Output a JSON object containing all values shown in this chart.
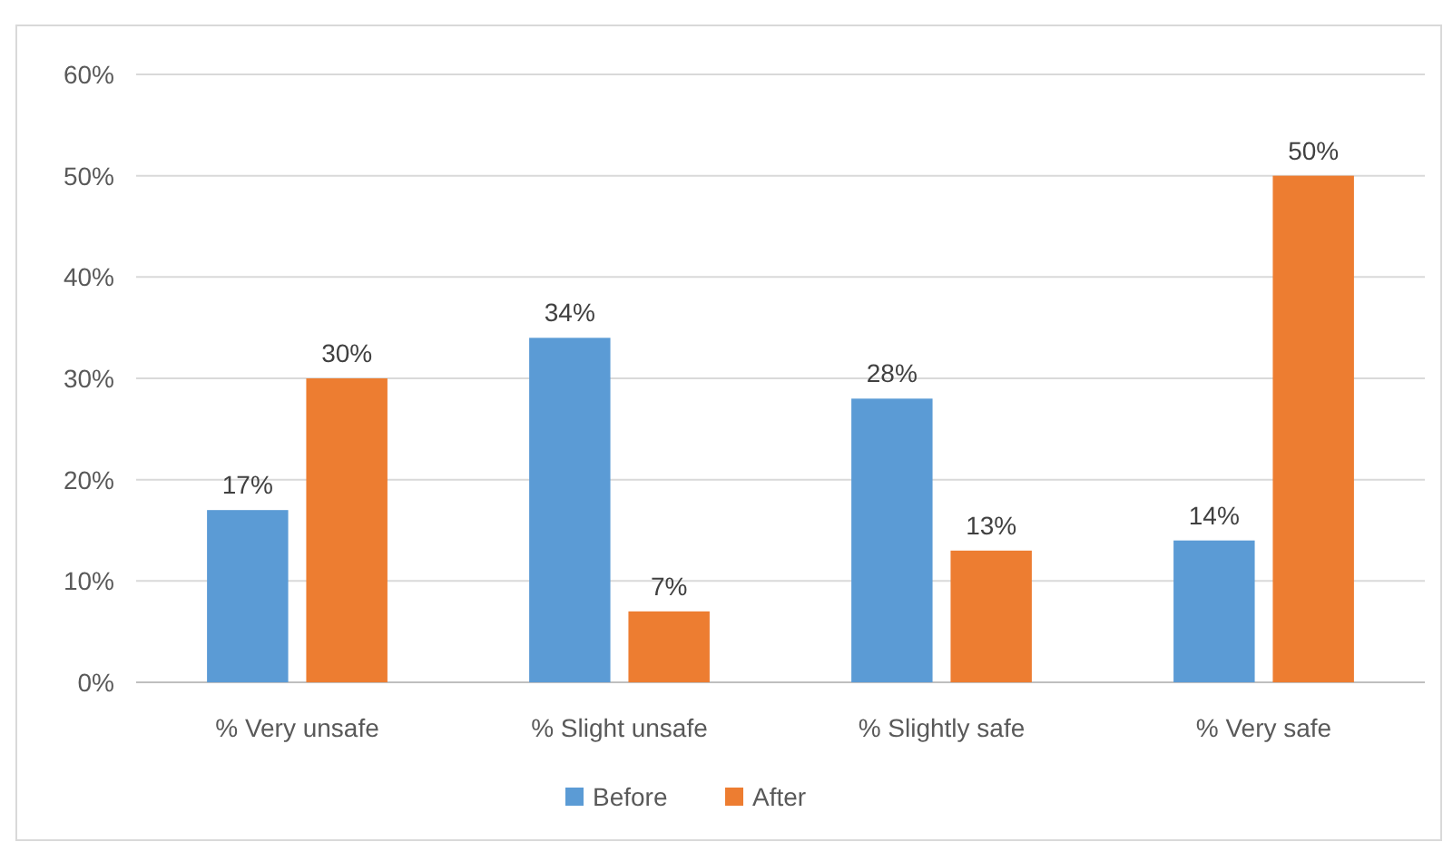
{
  "chart_data": {
    "type": "bar",
    "categories": [
      "% Very unsafe",
      "% Slight unsafe",
      "% Slightly safe",
      "% Very safe"
    ],
    "series": [
      {
        "name": "Before",
        "color": "#5b9bd5",
        "values": [
          17,
          34,
          28,
          14
        ],
        "value_labels": [
          "17%",
          "34%",
          "28%",
          "14%"
        ]
      },
      {
        "name": "After",
        "color": "#ed7d31",
        "values": [
          30,
          7,
          13,
          50
        ],
        "value_labels": [
          "30%",
          "7%",
          "13%",
          "50%"
        ]
      }
    ],
    "ylim": [
      0,
      60
    ],
    "yticks": [
      {
        "value": 0,
        "label": "0%"
      },
      {
        "value": 10,
        "label": "10%"
      },
      {
        "value": 20,
        "label": "20%"
      },
      {
        "value": 30,
        "label": "30%"
      },
      {
        "value": 40,
        "label": "40%"
      },
      {
        "value": 50,
        "label": "50%"
      },
      {
        "value": 60,
        "label": "60%"
      }
    ],
    "grid": "y",
    "legend": "bottom"
  }
}
